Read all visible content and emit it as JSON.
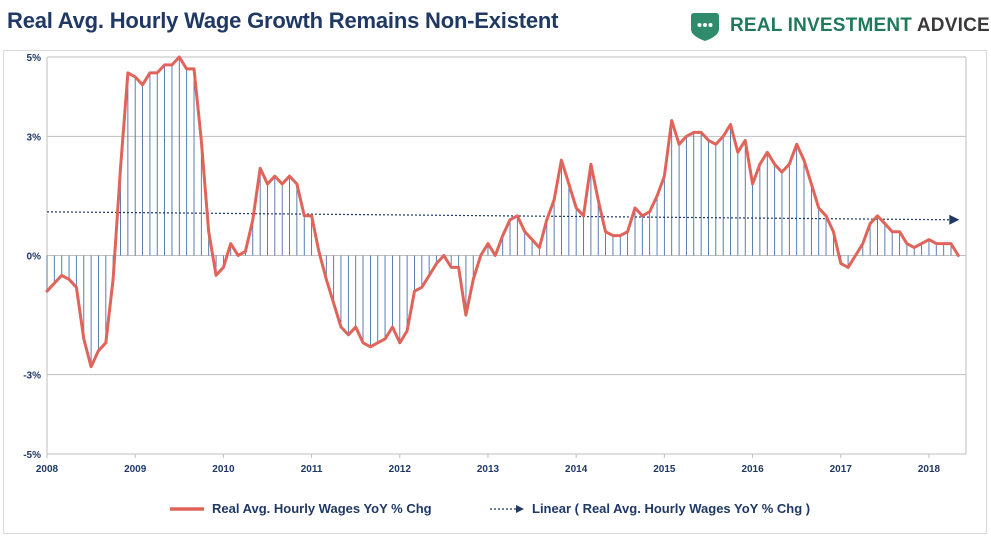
{
  "title": "Real Avg. Hourly Wage Growth Remains Non-Existent",
  "brand": {
    "accent": "REAL INVESTMENT",
    "rest": " ADVICE",
    "icon": "chat-bubble-shield-icon",
    "color": "#1f7a5c"
  },
  "chart_data": {
    "type": "line",
    "title": "Real Avg. Hourly Wage Growth Remains Non-Existent",
    "xlabel": "",
    "ylabel": "",
    "xlim": [
      2008,
      2018.42
    ],
    "ylim": [
      -5,
      5
    ],
    "yticks": [
      5,
      3,
      0,
      -3,
      -5
    ],
    "ytick_labels": [
      "5%",
      "3%",
      "0%",
      "-3%",
      "-5%"
    ],
    "xticks": [
      2008,
      2009,
      2010,
      2011,
      2012,
      2013,
      2014,
      2015,
      2016,
      2017,
      2018
    ],
    "xtick_labels": [
      "2008",
      "2009",
      "2010",
      "2011",
      "2012",
      "2013",
      "2014",
      "2015",
      "2016",
      "2017",
      "2018"
    ],
    "grid": true,
    "legend_position": "bottom",
    "series": [
      {
        "name": "Real Avg. Hourly Wages YoY % Chg",
        "color": "#e0645a",
        "style": "line-with-drop-lines",
        "x": [
          2008.0,
          2008.083,
          2008.167,
          2008.25,
          2008.333,
          2008.417,
          2008.5,
          2008.583,
          2008.667,
          2008.75,
          2008.833,
          2008.917,
          2009.0,
          2009.083,
          2009.167,
          2009.25,
          2009.333,
          2009.417,
          2009.5,
          2009.583,
          2009.667,
          2009.75,
          2009.833,
          2009.917,
          2010.0,
          2010.083,
          2010.167,
          2010.25,
          2010.333,
          2010.417,
          2010.5,
          2010.583,
          2010.667,
          2010.75,
          2010.833,
          2010.917,
          2011.0,
          2011.083,
          2011.167,
          2011.25,
          2011.333,
          2011.417,
          2011.5,
          2011.583,
          2011.667,
          2011.75,
          2011.833,
          2011.917,
          2012.0,
          2012.083,
          2012.167,
          2012.25,
          2012.333,
          2012.417,
          2012.5,
          2012.583,
          2012.667,
          2012.75,
          2012.833,
          2012.917,
          2013.0,
          2013.083,
          2013.167,
          2013.25,
          2013.333,
          2013.417,
          2013.5,
          2013.583,
          2013.667,
          2013.75,
          2013.833,
          2013.917,
          2014.0,
          2014.083,
          2014.167,
          2014.25,
          2014.333,
          2014.417,
          2014.5,
          2014.583,
          2014.667,
          2014.75,
          2014.833,
          2014.917,
          2015.0,
          2015.083,
          2015.167,
          2015.25,
          2015.333,
          2015.417,
          2015.5,
          2015.583,
          2015.667,
          2015.75,
          2015.833,
          2015.917,
          2016.0,
          2016.083,
          2016.167,
          2016.25,
          2016.333,
          2016.417,
          2016.5,
          2016.583,
          2016.667,
          2016.75,
          2016.833,
          2016.917,
          2017.0,
          2017.083,
          2017.167,
          2017.25,
          2017.333,
          2017.417,
          2017.5,
          2017.583,
          2017.667,
          2017.75,
          2017.833,
          2017.917,
          2018.0,
          2018.083,
          2018.167,
          2018.25,
          2018.333
        ],
        "values": [
          -0.9,
          -0.7,
          -0.5,
          -0.6,
          -0.8,
          -2.1,
          -2.8,
          -2.4,
          -2.2,
          -0.6,
          2.2,
          4.6,
          4.5,
          4.3,
          4.6,
          4.6,
          4.8,
          4.8,
          5.0,
          4.7,
          4.7,
          2.9,
          0.6,
          -0.5,
          -0.3,
          0.3,
          0.0,
          0.1,
          0.9,
          2.2,
          1.8,
          2.0,
          1.8,
          2.0,
          1.8,
          1.0,
          1.0,
          0.1,
          -0.6,
          -1.2,
          -1.8,
          -2.0,
          -1.8,
          -2.2,
          -2.3,
          -2.2,
          -2.1,
          -1.8,
          -2.2,
          -1.9,
          -0.9,
          -0.8,
          -0.5,
          -0.2,
          0.0,
          -0.3,
          -0.3,
          -1.5,
          -0.6,
          0.0,
          0.3,
          0.0,
          0.5,
          0.9,
          1.0,
          0.6,
          0.4,
          0.2,
          0.9,
          1.4,
          2.4,
          1.8,
          1.2,
          1.0,
          2.3,
          1.4,
          0.6,
          0.5,
          0.5,
          0.6,
          1.2,
          1.0,
          1.1,
          1.5,
          2.0,
          3.4,
          2.8,
          3.0,
          3.1,
          3.1,
          2.9,
          2.8,
          3.0,
          3.3,
          2.6,
          2.9,
          1.8,
          2.3,
          2.6,
          2.3,
          2.1,
          2.3,
          2.8,
          2.4,
          1.8,
          1.2,
          1.0,
          0.6,
          -0.2,
          -0.3,
          0.0,
          0.3,
          0.8,
          1.0,
          0.8,
          0.6,
          0.6,
          0.3,
          0.2,
          0.3,
          0.4,
          0.3,
          0.3,
          0.3,
          0.0
        ]
      },
      {
        "name": "Linear ( Real Avg. Hourly Wages YoY % Chg )",
        "color": "#1f3864",
        "style": "dotted-trendline-arrow",
        "x": [
          2008.0,
          2018.333
        ],
        "values": [
          1.1,
          0.9
        ]
      }
    ]
  }
}
